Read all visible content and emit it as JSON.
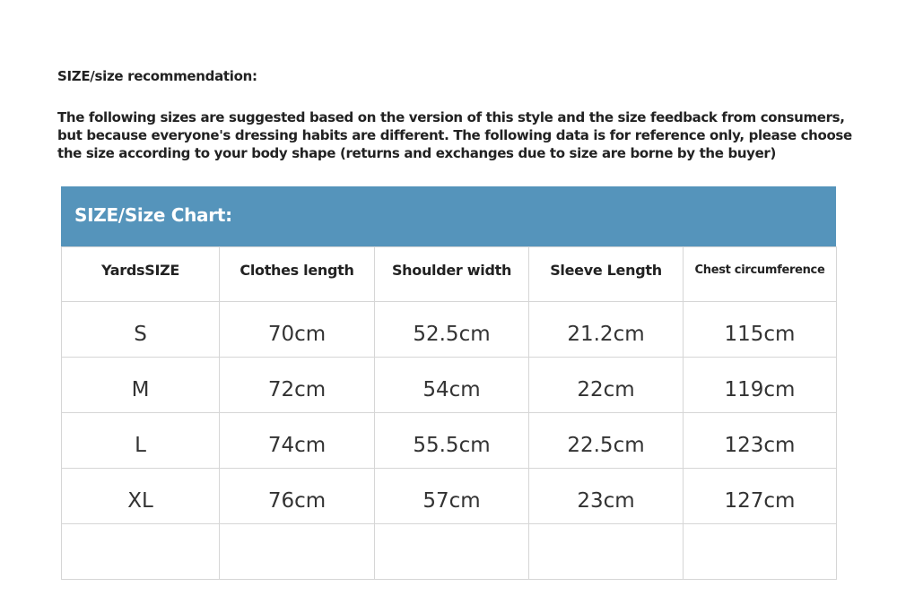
{
  "heading": "SIZE/size recommendation:",
  "intro": "The following sizes are suggested based on the version of this style and the size feedback from consumers, but because everyone's dressing habits are different. The following data is for reference only, please choose the size according to your body shape (returns and exchanges due to size are borne by the buyer)",
  "chart_title": "SIZE/Size Chart:",
  "accent_color": "#5594bb",
  "columns": [
    "YardsSIZE",
    "Clothes length",
    "Shoulder width",
    "Sleeve Length",
    "Chest circumference"
  ],
  "rows": [
    [
      "S",
      "70cm",
      "52.5cm",
      "21.2cm",
      "115cm"
    ],
    [
      "M",
      "72cm",
      "54cm",
      "22cm",
      "119cm"
    ],
    [
      "L",
      "74cm",
      "55.5cm",
      "22.5cm",
      "123cm"
    ],
    [
      "XL",
      "76cm",
      "57cm",
      "23cm",
      "127cm"
    ],
    [
      "",
      "",
      "",
      "",
      ""
    ]
  ]
}
